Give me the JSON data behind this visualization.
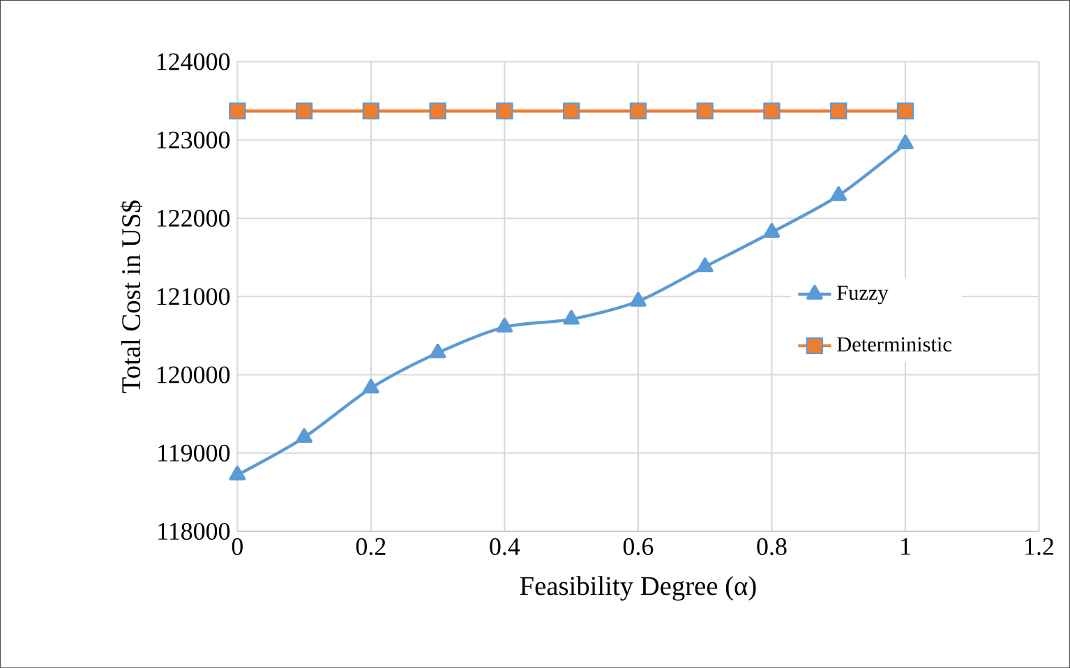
{
  "chart_data": {
    "type": "line",
    "xlabel": "Feasibility Degree (α)",
    "ylabel": "Total Cost in US$",
    "x": [
      0,
      0.1,
      0.2,
      0.3,
      0.4,
      0.5,
      0.6,
      0.7,
      0.8,
      0.9,
      1
    ],
    "series": [
      {
        "name": "Fuzzy",
        "color": "#5b9bd5",
        "marker": "triangle",
        "values": [
          118720,
          119200,
          119830,
          120280,
          120610,
          120710,
          120940,
          121380,
          121820,
          122290,
          122950
        ]
      },
      {
        "name": "Deterministic",
        "color": "#ed7d31",
        "marker": "square",
        "values": [
          123370,
          123370,
          123370,
          123370,
          123370,
          123370,
          123370,
          123370,
          123370,
          123370,
          123370
        ]
      }
    ],
    "xlim": [
      0,
      1.2
    ],
    "xticks": [
      0,
      0.2,
      0.4,
      0.6,
      0.8,
      1,
      1.2
    ],
    "ylim": [
      118000,
      124000
    ],
    "yticks": [
      118000,
      119000,
      120000,
      121000,
      122000,
      123000,
      124000
    ],
    "grid": true,
    "legend": "right"
  }
}
